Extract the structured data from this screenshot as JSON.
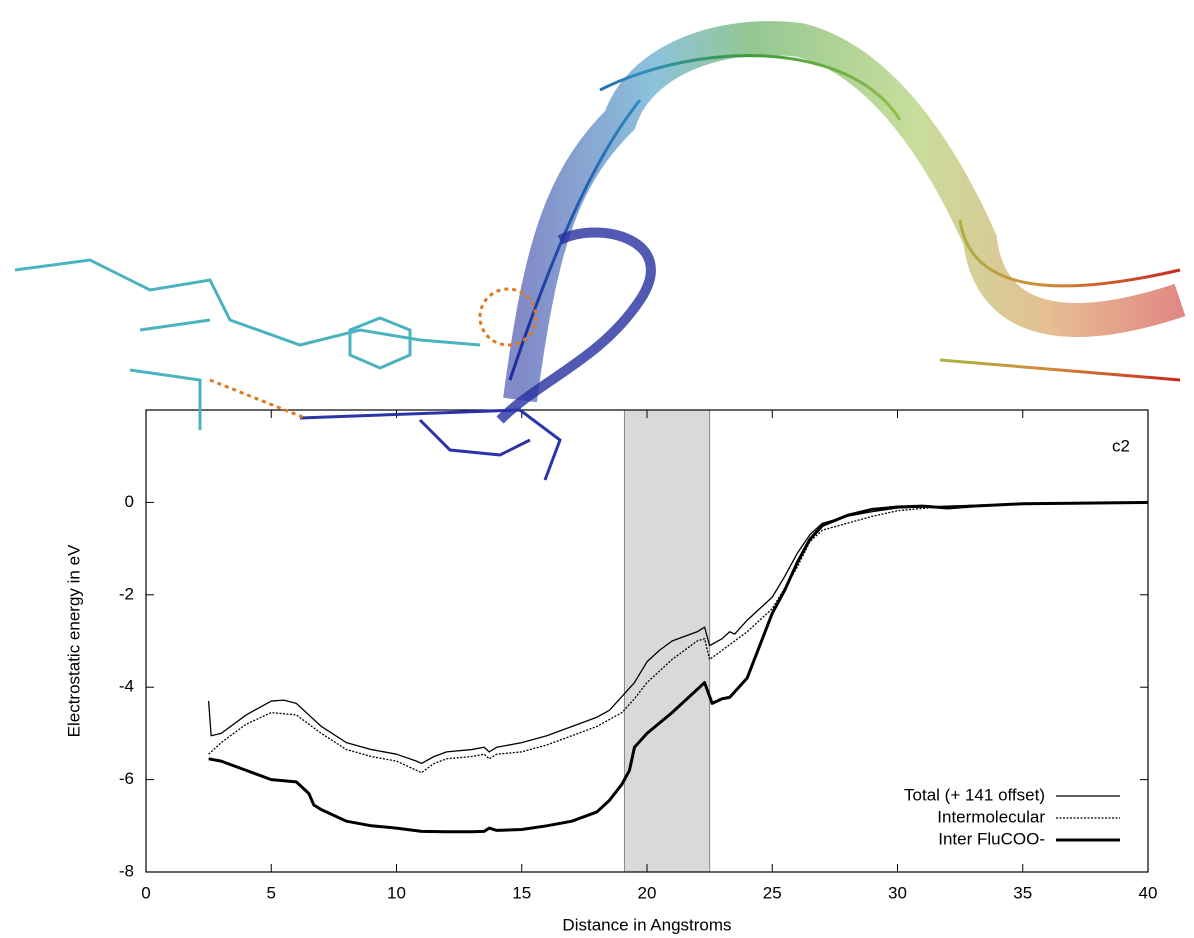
{
  "chart_data": {
    "type": "line",
    "xlabel": "Distance in Angstroms",
    "ylabel": "Electrostatic energy in eV",
    "annotation": "c2",
    "xlim": [
      0,
      40
    ],
    "xticks": [
      0,
      5,
      10,
      15,
      20,
      25,
      30,
      35,
      40
    ],
    "ylim": [
      -8,
      2
    ],
    "yticks": [
      -8,
      -6,
      -4,
      -2,
      0
    ],
    "highlight": {
      "xrange": [
        19.1,
        22.5
      ],
      "color": "#d9d9dc"
    },
    "legend": "lower right",
    "series": [
      {
        "name": "Total (+ 141 offset)",
        "color": "#000000",
        "style": "thin",
        "x": [
          2.5,
          2.6,
          3,
          4,
          5,
          5.5,
          6,
          6.5,
          7,
          8,
          9,
          10,
          10.8,
          11,
          11.5,
          12,
          13,
          13.5,
          13.7,
          14,
          15,
          16,
          17,
          18,
          18.5,
          19,
          19.5,
          20,
          20.5,
          21,
          21.5,
          22,
          22.3,
          22.5,
          23,
          23.3,
          23.5,
          24,
          24.5,
          25,
          25.5,
          26,
          26.5,
          27,
          28,
          29,
          30,
          32,
          35,
          40
        ],
        "values": [
          -4.3,
          -5.05,
          -5.0,
          -4.6,
          -4.3,
          -4.28,
          -4.35,
          -4.6,
          -4.85,
          -5.2,
          -5.35,
          -5.45,
          -5.6,
          -5.65,
          -5.5,
          -5.4,
          -5.35,
          -5.3,
          -5.4,
          -5.3,
          -5.2,
          -5.05,
          -4.85,
          -4.65,
          -4.5,
          -4.2,
          -3.9,
          -3.45,
          -3.2,
          -3.0,
          -2.9,
          -2.8,
          -2.7,
          -3.1,
          -2.95,
          -2.8,
          -2.85,
          -2.55,
          -2.3,
          -2.05,
          -1.6,
          -1.1,
          -0.7,
          -0.45,
          -0.3,
          -0.2,
          -0.12,
          -0.08,
          -0.03,
          0
        ]
      },
      {
        "name": "Intermolecular",
        "color": "#000000",
        "style": "dotted",
        "x": [
          2.5,
          3,
          4,
          5,
          6,
          7,
          8,
          9,
          10,
          11,
          11.5,
          12,
          13,
          13.5,
          13.7,
          14,
          15,
          16,
          17,
          18,
          19,
          19.5,
          20,
          21,
          22,
          22.3,
          22.5,
          23,
          24,
          25,
          26,
          26.5,
          27,
          28,
          29,
          30,
          32,
          35,
          40
        ],
        "values": [
          -5.45,
          -5.2,
          -4.8,
          -4.55,
          -4.6,
          -5.0,
          -5.35,
          -5.5,
          -5.6,
          -5.85,
          -5.65,
          -5.55,
          -5.5,
          -5.45,
          -5.55,
          -5.45,
          -5.4,
          -5.25,
          -5.05,
          -4.85,
          -4.55,
          -4.25,
          -3.9,
          -3.4,
          -3.0,
          -2.95,
          -3.4,
          -3.2,
          -2.8,
          -2.3,
          -1.4,
          -0.85,
          -0.6,
          -0.45,
          -0.3,
          -0.18,
          -0.08,
          -0.03,
          0
        ]
      },
      {
        "name": "Inter FluCOO-",
        "color": "#000000",
        "style": "thick",
        "x": [
          2.5,
          3,
          4,
          5,
          6,
          6.5,
          6.7,
          7,
          8,
          9,
          10,
          11,
          12,
          13,
          13.5,
          13.7,
          14,
          15,
          16,
          17,
          18,
          18.5,
          19,
          19.3,
          19.5,
          20,
          21,
          21.5,
          22,
          22.3,
          22.6,
          23,
          23.3,
          24,
          24.5,
          25,
          25.5,
          26,
          26.5,
          27,
          28,
          29,
          30,
          31,
          32,
          33,
          35,
          40
        ],
        "values": [
          -5.55,
          -5.6,
          -5.8,
          -6.0,
          -6.05,
          -6.3,
          -6.55,
          -6.65,
          -6.9,
          -7.0,
          -7.05,
          -7.12,
          -7.13,
          -7.13,
          -7.12,
          -7.05,
          -7.1,
          -7.08,
          -7.0,
          -6.9,
          -6.7,
          -6.45,
          -6.1,
          -5.8,
          -5.3,
          -5.0,
          -4.55,
          -4.3,
          -4.05,
          -3.9,
          -4.35,
          -4.25,
          -4.22,
          -3.8,
          -3.1,
          -2.4,
          -1.9,
          -1.3,
          -0.8,
          -0.5,
          -0.28,
          -0.15,
          -0.1,
          -0.08,
          -0.12,
          -0.08,
          -0.03,
          0
        ]
      }
    ]
  }
}
